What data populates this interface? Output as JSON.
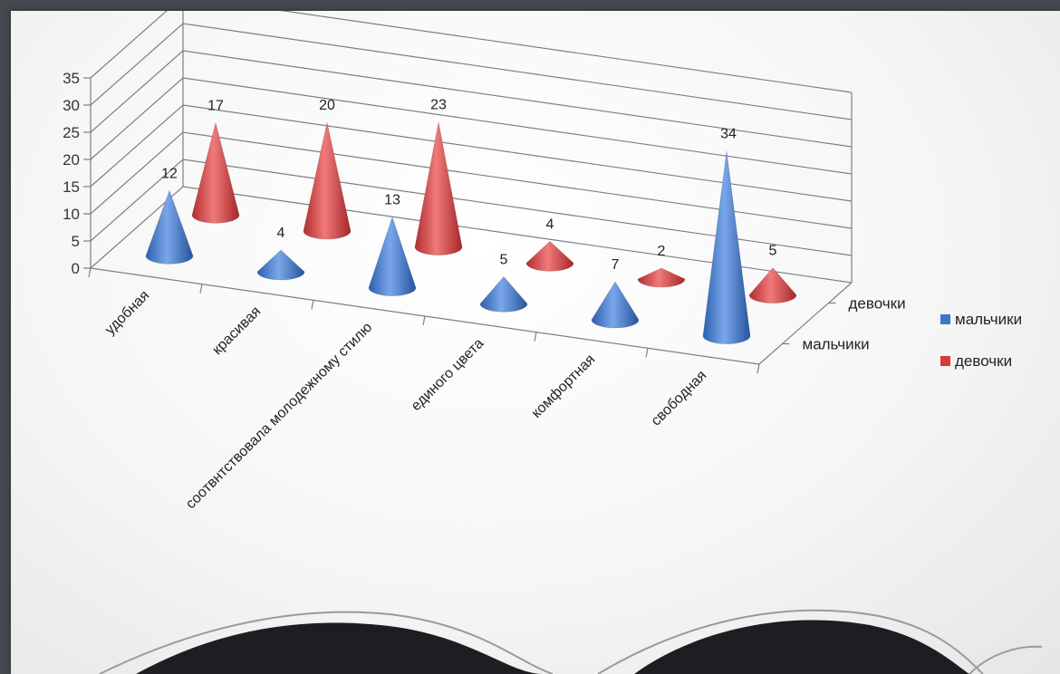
{
  "chart_data": {
    "type": "bar",
    "subtype": "3d-cone",
    "categories": [
      "удобная",
      "красивая",
      "соотвнтствовала молодежному стилю",
      "единого цвета",
      "комфортная",
      "свободная"
    ],
    "series": [
      {
        "name": "мальчики",
        "color": "#3d76c9",
        "values": [
          12,
          4,
          13,
          5,
          7,
          34
        ]
      },
      {
        "name": "девочки",
        "color": "#d9393c",
        "values": [
          17,
          20,
          23,
          4,
          2,
          5
        ]
      }
    ],
    "ylim": [
      0,
      35
    ],
    "yticks": [
      "0",
      "5",
      "10",
      "15",
      "20",
      "25",
      "30",
      "35"
    ],
    "depth_axis_labels": [
      "девочки",
      "мальчики"
    ],
    "legend": [
      {
        "name": "мальчики",
        "color": "#3d76c9"
      },
      {
        "name": "девочки",
        "color": "#d9393c"
      }
    ],
    "legend_position": "right",
    "grid": true
  }
}
